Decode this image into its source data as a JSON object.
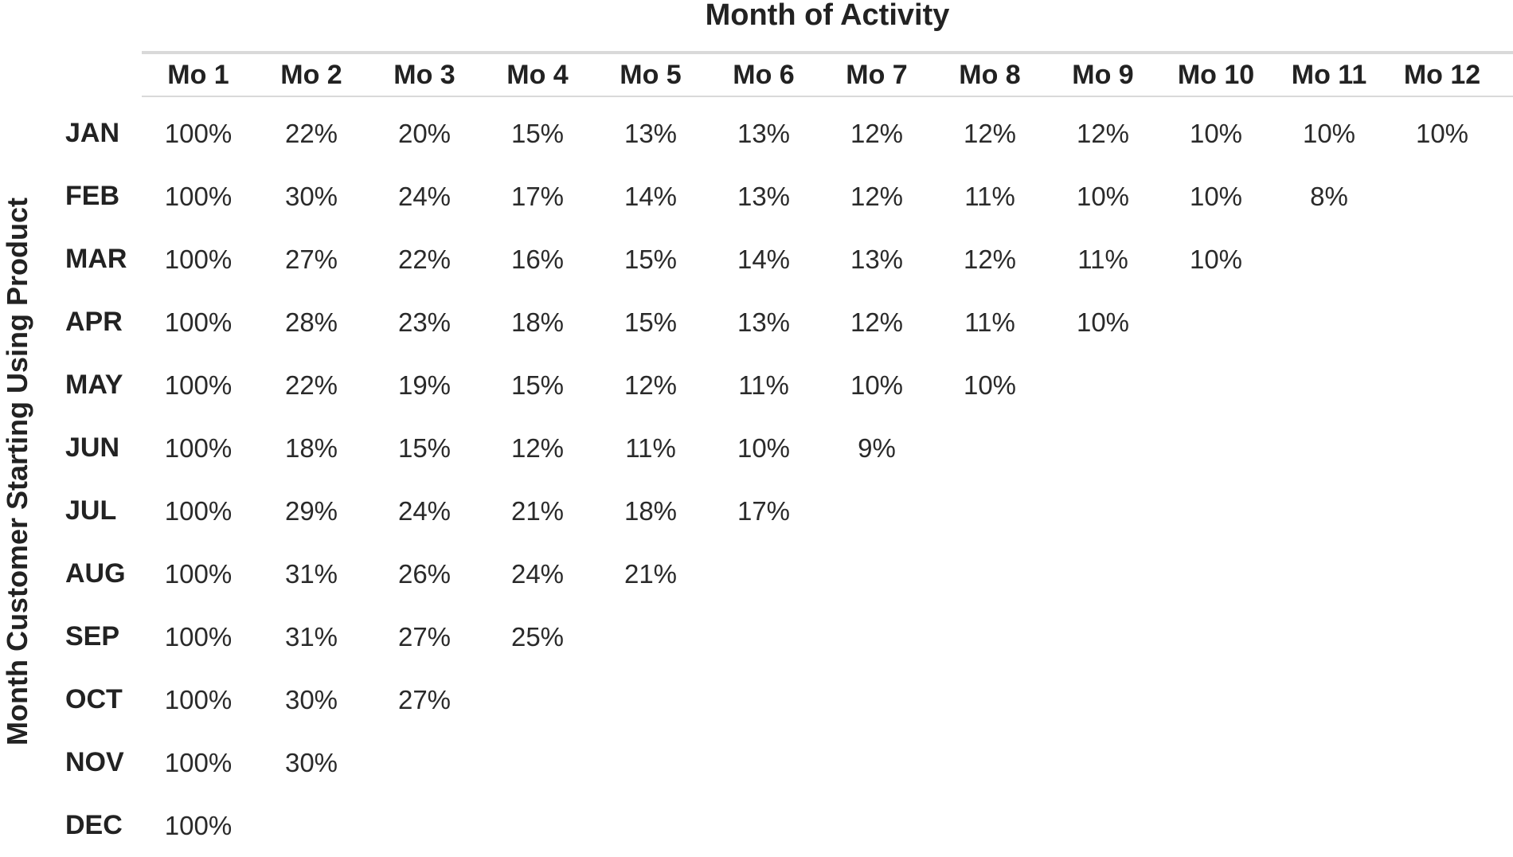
{
  "chart_data": {
    "type": "table",
    "xlabel": "Month of Activity",
    "ylabel": "Month Customer Starting Using Product",
    "columns": [
      "Mo 1",
      "Mo 2",
      "Mo 3",
      "Mo 4",
      "Mo 5",
      "Mo 6",
      "Mo 7",
      "Mo 8",
      "Mo 9",
      "Mo 10",
      "Mo 11",
      "Mo 12"
    ],
    "rows": [
      {
        "label": "JAN",
        "values": [
          "100%",
          "22%",
          "20%",
          "15%",
          "13%",
          "13%",
          "12%",
          "12%",
          "12%",
          "10%",
          "10%",
          "10%"
        ]
      },
      {
        "label": "FEB",
        "values": [
          "100%",
          "30%",
          "24%",
          "17%",
          "14%",
          "13%",
          "12%",
          "11%",
          "10%",
          "10%",
          "8%"
        ]
      },
      {
        "label": "MAR",
        "values": [
          "100%",
          "27%",
          "22%",
          "16%",
          "15%",
          "14%",
          "13%",
          "12%",
          "11%",
          "10%"
        ]
      },
      {
        "label": "APR",
        "values": [
          "100%",
          "28%",
          "23%",
          "18%",
          "15%",
          "13%",
          "12%",
          "11%",
          "10%"
        ]
      },
      {
        "label": "MAY",
        "values": [
          "100%",
          "22%",
          "19%",
          "15%",
          "12%",
          "11%",
          "10%",
          "10%"
        ]
      },
      {
        "label": "JUN",
        "values": [
          "100%",
          "18%",
          "15%",
          "12%",
          "11%",
          "10%",
          "9%"
        ]
      },
      {
        "label": "JUL",
        "values": [
          "100%",
          "29%",
          "24%",
          "21%",
          "18%",
          "17%"
        ]
      },
      {
        "label": "AUG",
        "values": [
          "100%",
          "31%",
          "26%",
          "24%",
          "21%"
        ]
      },
      {
        "label": "SEP",
        "values": [
          "100%",
          "31%",
          "27%",
          "25%"
        ]
      },
      {
        "label": "OCT",
        "values": [
          "100%",
          "30%",
          "27%"
        ]
      },
      {
        "label": "NOV",
        "values": [
          "100%",
          "30%"
        ]
      },
      {
        "label": "DEC",
        "values": [
          "100%"
        ]
      }
    ]
  }
}
